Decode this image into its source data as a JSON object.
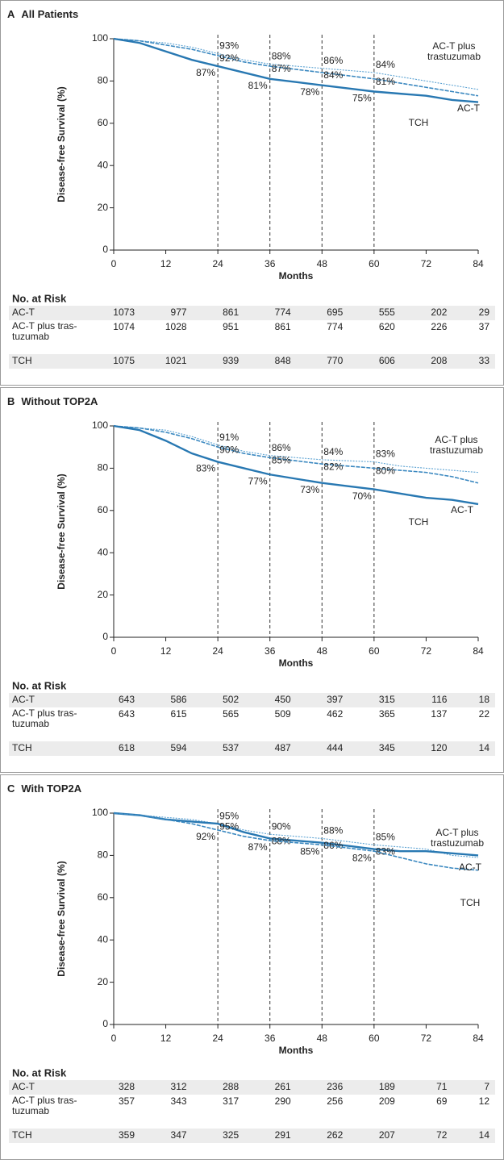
{
  "chart_data": [
    {
      "type": "line",
      "panel": "A",
      "title": "All Patients",
      "ylabel": "Disease-free Survival (%)",
      "xlabel": "Months",
      "xlim": [
        0,
        84
      ],
      "xticks": [
        0,
        12,
        24,
        36,
        48,
        60,
        72,
        84
      ],
      "ylim": [
        0,
        100
      ],
      "yticks": [
        0,
        20,
        40,
        60,
        80,
        100
      ],
      "x": [
        0,
        6,
        12,
        18,
        24,
        30,
        36,
        42,
        48,
        54,
        60,
        66,
        72,
        78,
        84
      ],
      "landmark_x": [
        24,
        36,
        48,
        60
      ],
      "series": [
        {
          "name": "AC-T plus trastuzumab",
          "color": "#5da3d3",
          "values": [
            100,
            99,
            98,
            96,
            93,
            90,
            88,
            87,
            86,
            85,
            84,
            82,
            80,
            78,
            76
          ],
          "landmark_values": [
            93,
            88,
            86,
            84
          ],
          "landmark_labels": [
            "93%",
            "88%",
            "86%",
            "84%"
          ]
        },
        {
          "name": "TCH",
          "color": "#3a88c0",
          "values": [
            100,
            99,
            97,
            95,
            92,
            89,
            87,
            85.5,
            84,
            82.5,
            81,
            79,
            77,
            75,
            73
          ],
          "landmark_values": [
            92,
            87,
            84,
            81
          ],
          "landmark_labels": [
            "92%",
            "87%",
            "84%",
            "81%"
          ]
        },
        {
          "name": "AC-T",
          "color": "#2878b2",
          "values": [
            100,
            98,
            94,
            90,
            87,
            84,
            81,
            79.5,
            78,
            76.5,
            75,
            74,
            73,
            71,
            70
          ],
          "landmark_values": [
            87,
            81,
            78,
            75
          ],
          "landmark_labels": [
            "87%",
            "81%",
            "78%",
            "75%"
          ]
        }
      ],
      "risk_table": {
        "title": "No. at Risk",
        "rows": [
          {
            "label": "AC-T",
            "values": [
              1073,
              977,
              861,
              774,
              695,
              555,
              202,
              29
            ]
          },
          {
            "label": "AC-T plus tras-tuzumab",
            "values": [
              1074,
              1028,
              951,
              861,
              774,
              620,
              226,
              37
            ]
          },
          {
            "label": "TCH",
            "values": [
              1075,
              1021,
              939,
              848,
              770,
              606,
              208,
              33
            ]
          }
        ]
      }
    },
    {
      "type": "line",
      "panel": "B",
      "title": "Without TOP2A",
      "ylabel": "Disease-free Survival (%)",
      "xlabel": "Months",
      "xlim": [
        0,
        84
      ],
      "xticks": [
        0,
        12,
        24,
        36,
        48,
        60,
        72,
        84
      ],
      "ylim": [
        0,
        100
      ],
      "yticks": [
        0,
        20,
        40,
        60,
        80,
        100
      ],
      "x": [
        0,
        6,
        12,
        18,
        24,
        30,
        36,
        42,
        48,
        54,
        60,
        66,
        72,
        78,
        84
      ],
      "landmark_x": [
        24,
        36,
        48,
        60
      ],
      "series": [
        {
          "name": "AC-T plus trastuzumab",
          "color": "#5da3d3",
          "values": [
            100,
            99,
            98,
            95,
            91,
            88,
            86,
            85,
            84,
            83.5,
            83,
            81,
            80,
            79,
            78
          ],
          "landmark_values": [
            91,
            86,
            84,
            83
          ],
          "landmark_labels": [
            "91%",
            "86%",
            "84%",
            "83%"
          ]
        },
        {
          "name": "TCH",
          "color": "#3a88c0",
          "values": [
            100,
            99,
            97,
            94,
            90,
            87,
            85,
            83.5,
            82,
            81,
            80,
            79,
            78,
            76,
            73
          ],
          "landmark_values": [
            90,
            85,
            82,
            80
          ],
          "landmark_labels": [
            "90%",
            "85%",
            "82%",
            "80%"
          ]
        },
        {
          "name": "AC-T",
          "color": "#2878b2",
          "values": [
            100,
            98,
            93,
            87,
            83,
            80,
            77,
            75,
            73,
            71.5,
            70,
            68,
            66,
            65,
            63
          ],
          "landmark_values": [
            83,
            77,
            73,
            70
          ],
          "landmark_labels": [
            "83%",
            "77%",
            "73%",
            "70%"
          ]
        }
      ],
      "risk_table": {
        "title": "No. at Risk",
        "rows": [
          {
            "label": "AC-T",
            "values": [
              643,
              586,
              502,
              450,
              397,
              315,
              116,
              18
            ]
          },
          {
            "label": "AC-T plus tras-tuzumab",
            "values": [
              643,
              615,
              565,
              509,
              462,
              365,
              137,
              22
            ]
          },
          {
            "label": "TCH",
            "values": [
              618,
              594,
              537,
              487,
              444,
              345,
              120,
              14
            ]
          }
        ]
      }
    },
    {
      "type": "line",
      "panel": "C",
      "title": "With TOP2A",
      "ylabel": "Disease-free Survival (%)",
      "xlabel": "Months",
      "xlim": [
        0,
        84
      ],
      "xticks": [
        0,
        12,
        24,
        36,
        48,
        60,
        72,
        84
      ],
      "ylim": [
        0,
        100
      ],
      "yticks": [
        0,
        20,
        40,
        60,
        80,
        100
      ],
      "x": [
        0,
        6,
        12,
        18,
        24,
        30,
        36,
        42,
        48,
        54,
        60,
        66,
        72,
        78,
        84
      ],
      "landmark_x": [
        24,
        36,
        48,
        60
      ],
      "series": [
        {
          "name": "AC-T plus trastuzumab",
          "color": "#5da3d3",
          "values": [
            100,
            99,
            98,
            97,
            95,
            92,
            90,
            89,
            88,
            86.5,
            85,
            84,
            83,
            80,
            79
          ],
          "landmark_values": [
            95,
            90,
            88,
            85
          ],
          "landmark_labels": [
            "95%",
            "90%",
            "88%",
            "85%"
          ]
        },
        {
          "name": "AC-T",
          "color": "#2878b2",
          "values": [
            100,
            99,
            97,
            96,
            95,
            91,
            88,
            87,
            86,
            84.5,
            83,
            82,
            82,
            81,
            80
          ],
          "landmark_values": [
            95,
            88,
            86,
            83
          ],
          "landmark_labels": [
            "95%",
            "88%",
            "86%",
            "83%"
          ]
        },
        {
          "name": "TCH",
          "color": "#3a88c0",
          "values": [
            100,
            99,
            97,
            95,
            92,
            89,
            87,
            86,
            85,
            83.5,
            82,
            79,
            76,
            74,
            73
          ],
          "landmark_values": [
            92,
            87,
            85,
            82
          ],
          "landmark_labels": [
            "92%",
            "87%",
            "85%",
            "82%"
          ]
        }
      ],
      "risk_table": {
        "title": "No. at Risk",
        "rows": [
          {
            "label": "AC-T",
            "values": [
              328,
              312,
              288,
              261,
              236,
              189,
              71,
              7
            ]
          },
          {
            "label": "AC-T plus tras-tuzumab",
            "values": [
              357,
              343,
              317,
              290,
              256,
              209,
              69,
              12
            ]
          },
          {
            "label": "TCH",
            "values": [
              359,
              347,
              325,
              291,
              262,
              207,
              72,
              14
            ]
          }
        ]
      }
    }
  ]
}
